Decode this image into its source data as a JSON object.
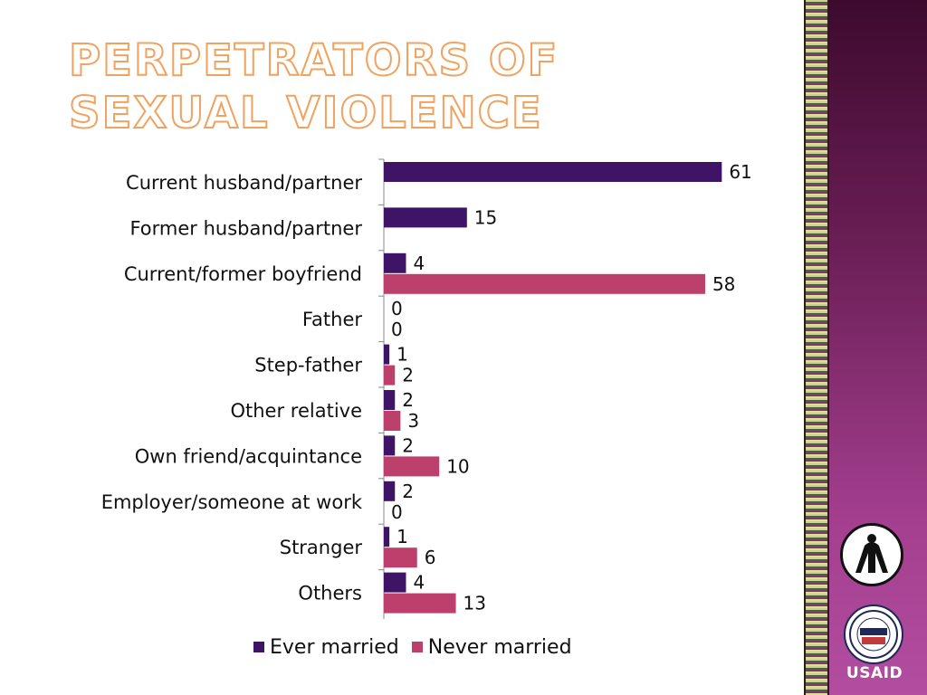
{
  "slide": {
    "title": "Perpetrators of Sexual Violence"
  },
  "logos": {
    "agency_text": "USAID"
  },
  "colors": {
    "ever_married": "#3f1466",
    "never_married": "#bd3f6b",
    "title_outline": "#f0a25e",
    "axis": "#888888"
  },
  "chart_data": {
    "type": "bar",
    "orientation": "horizontal",
    "categories": [
      "Current husband/partner",
      "Former husband/partner",
      "Current/former boyfriend",
      "Father",
      "Step-father",
      "Other relative",
      "Own friend/acquintance",
      "Employer/someone at work",
      "Stranger",
      "Others"
    ],
    "series": [
      {
        "name": "Ever married",
        "values": [
          61,
          15,
          4,
          0,
          1,
          2,
          2,
          2,
          1,
          4
        ]
      },
      {
        "name": "Never married",
        "values": [
          null,
          null,
          58,
          0,
          2,
          3,
          10,
          0,
          6,
          13
        ]
      }
    ],
    "data_labels": true,
    "xlim": [
      0,
      70
    ],
    "grid": false,
    "legend_position": "bottom"
  }
}
